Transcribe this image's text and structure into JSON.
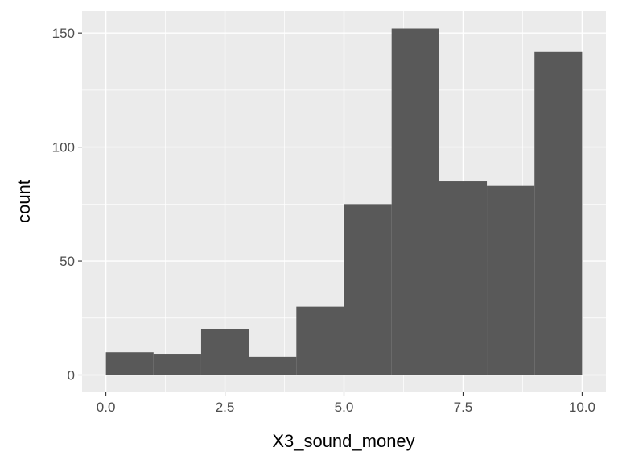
{
  "chart_data": {
    "type": "histogram",
    "title": "",
    "xlabel": "X3_sound_money",
    "ylabel": "count",
    "bins": [
      {
        "x0": 0,
        "x1": 1,
        "count": 10
      },
      {
        "x0": 1,
        "x1": 2,
        "count": 9
      },
      {
        "x0": 2,
        "x1": 3,
        "count": 20
      },
      {
        "x0": 3,
        "x1": 4,
        "count": 8
      },
      {
        "x0": 4,
        "x1": 5,
        "count": 30
      },
      {
        "x0": 5,
        "x1": 6,
        "count": 75
      },
      {
        "x0": 6,
        "x1": 7,
        "count": 152
      },
      {
        "x0": 7,
        "x1": 8,
        "count": 85
      },
      {
        "x0": 8,
        "x1": 9,
        "count": 83
      },
      {
        "x0": 9,
        "x1": 10,
        "count": 142
      }
    ],
    "xlim": [
      -0.5,
      10.5
    ],
    "ylim": [
      -7.6,
      159.6
    ],
    "x_ticks": [
      0,
      2.5,
      5,
      7.5,
      10
    ],
    "x_tick_labels": [
      "0.0",
      "2.5",
      "5.0",
      "7.5",
      "10.0"
    ],
    "y_ticks": [
      0,
      50,
      100,
      150
    ],
    "y_tick_labels": [
      "0",
      "50",
      "100",
      "150"
    ],
    "grid": true,
    "colors": {
      "panel_background": "#ebebeb",
      "grid": "#ffffff",
      "bar_fill": "#595959",
      "tick_text": "#4d4d4d",
      "tick_mark": "#333333"
    }
  }
}
